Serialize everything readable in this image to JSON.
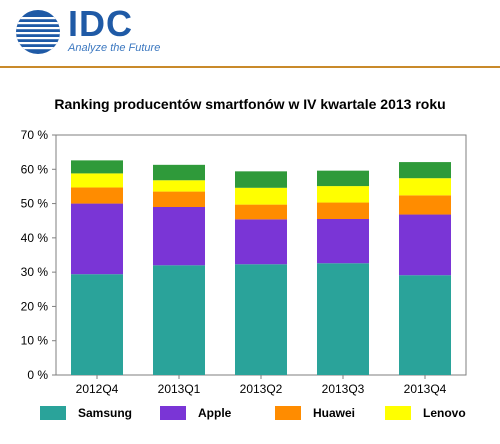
{
  "header": {
    "logo_text": "IDC",
    "tagline": "Analyze the Future"
  },
  "chart_data": {
    "type": "bar",
    "stacked": true,
    "title": "Ranking producentów smartfonów w IV kwartale 2013 roku",
    "xlabel": "",
    "ylabel": "",
    "ylim": [
      0,
      70
    ],
    "y_ticks": [
      0,
      10,
      20,
      30,
      40,
      50,
      60,
      70
    ],
    "y_tick_labels": [
      "0 %",
      "10 %",
      "20 %",
      "30 %",
      "40 %",
      "50 %",
      "60 %",
      "70 %"
    ],
    "categories": [
      "2012Q4",
      "2013Q1",
      "2013Q2",
      "2013Q3",
      "2013Q4"
    ],
    "series": [
      {
        "name": "Samsung",
        "color": "#2aa39a",
        "values": [
          29.4,
          32.0,
          32.3,
          32.6,
          29.1
        ]
      },
      {
        "name": "Apple",
        "color": "#7a35d6",
        "values": [
          20.6,
          17.0,
          13.1,
          12.9,
          17.7
        ]
      },
      {
        "name": "Huawei",
        "color": "#ff8c00",
        "values": [
          4.7,
          4.5,
          4.3,
          4.8,
          5.6
        ]
      },
      {
        "name": "Lenovo",
        "color": "#ffff00",
        "values": [
          4.1,
          3.3,
          4.9,
          4.8,
          5.0
        ]
      },
      {
        "name": "",
        "color": "#2f9a3a",
        "values": [
          3.8,
          4.5,
          4.8,
          4.5,
          4.7
        ]
      }
    ],
    "legend_position": "bottom",
    "grid": false
  }
}
